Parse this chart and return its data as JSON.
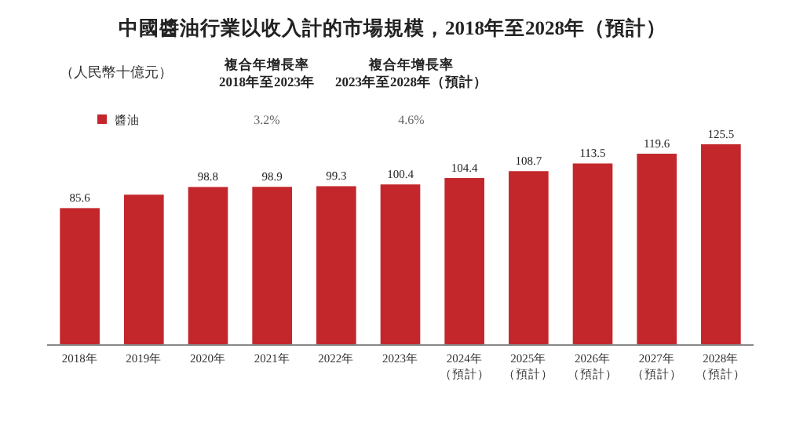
{
  "chart_data": {
    "type": "bar",
    "title": "中國醬油行業以收入計的市場規模，2018年至2028年（預計）",
    "ylabel": "（人民幣十億元）",
    "annotations": [
      "複合年增長率\n2018年至2023年",
      "複合年增長率\n2023年至2028年（預計）",
      "3.2%",
      "4.6%"
    ],
    "categories": [
      "2018年",
      "2019年",
      "2020年",
      "2021年",
      "2022年",
      "2023年",
      "2024年（預計）",
      "2025年（預計）",
      "2026年（預計）",
      "2027年（預計）",
      "2028年（預計）"
    ],
    "series": [
      {
        "name": "醬油",
        "color": "#c3272b",
        "values": [
          85.6,
          94.0,
          98.8,
          98.9,
          99.3,
          100.4,
          104.4,
          108.7,
          113.5,
          119.6,
          125.5
        ],
        "value_labels": [
          "85.6",
          null,
          "98.8",
          "98.9",
          "99.3",
          "100.4",
          "104.4",
          "108.7",
          "113.5",
          "119.6",
          "125.5"
        ]
      }
    ],
    "legend": "top left"
  }
}
